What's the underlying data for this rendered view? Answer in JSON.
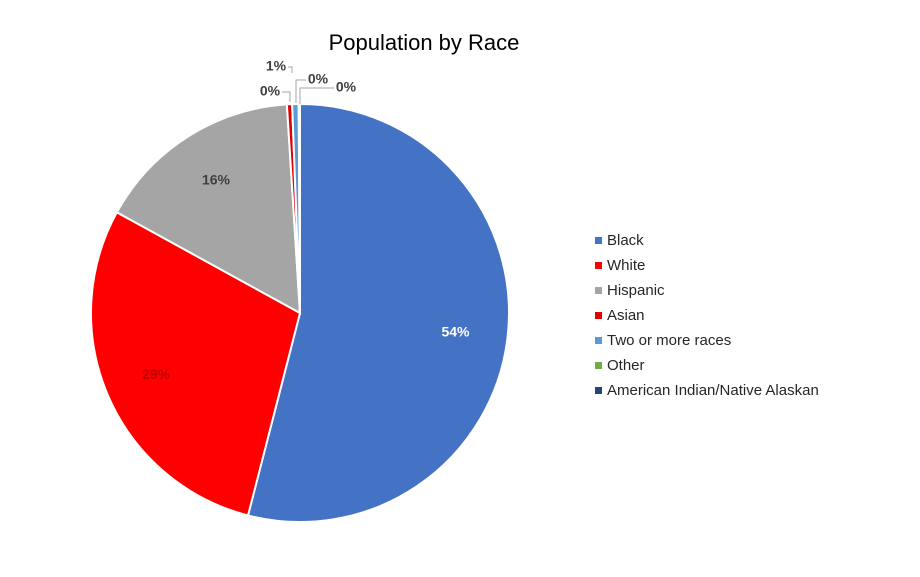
{
  "chart_data": {
    "type": "pie",
    "title": "Population by Race",
    "legend_position": "right",
    "slices": [
      {
        "name": "Black",
        "value": 54,
        "label": "54%",
        "color": "#4472C4",
        "label_color": "#ffffff"
      },
      {
        "name": "White",
        "value": 29,
        "label": "29%",
        "color": "#FF0000",
        "label_color": "#C00000"
      },
      {
        "name": "Hispanic",
        "value": 16,
        "label": "16%",
        "color": "#A5A5A5",
        "label_color": "#404040"
      },
      {
        "name": "Asian",
        "value": 0.4,
        "label": "0%",
        "color": "#E00000",
        "label_color": "#404040"
      },
      {
        "name": "Two or more races",
        "value": 0.5,
        "label": "1%",
        "color": "#5B9BD5",
        "label_color": "#404040"
      },
      {
        "name": "Other",
        "value": 0.05,
        "label": "0%",
        "color": "#70AD47",
        "label_color": "#404040"
      },
      {
        "name": "American Indian/Native Alaskan",
        "value": 0.05,
        "label": "0%",
        "color": "#264478",
        "label_color": "#404040"
      }
    ]
  }
}
